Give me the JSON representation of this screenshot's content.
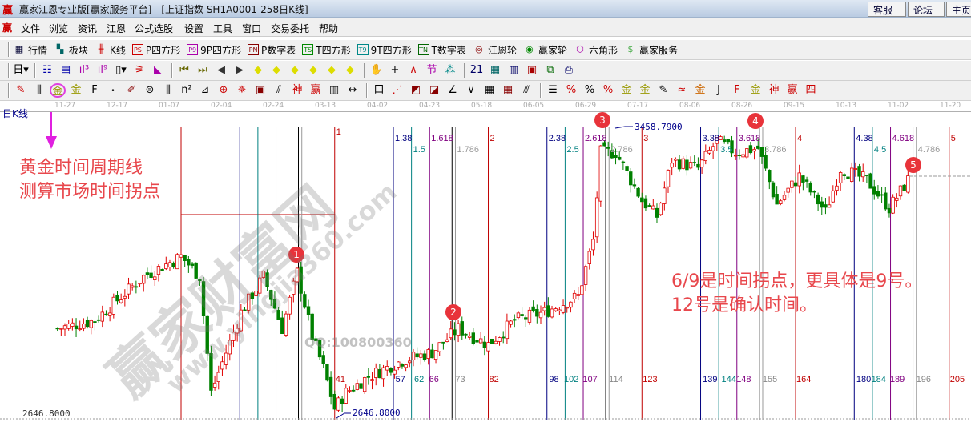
{
  "window": {
    "logo": "赢",
    "title": "赢家江恩专业版[赢家服务平台] - [上证指数  SH1A0001-258日K线]",
    "buttons": [
      "客服",
      "论坛",
      "主页"
    ]
  },
  "menu": {
    "logo": "赢",
    "items": [
      "文件",
      "浏览",
      "资讯",
      "江恩",
      "公式选股",
      "设置",
      "工具",
      "窗口",
      "交易委托",
      "帮助"
    ]
  },
  "toolbar1": [
    {
      "icon": "table-icon",
      "glyph": "▦",
      "label": "行情",
      "color": "#003"
    },
    {
      "icon": "sector-grid-icon",
      "glyph": "▚",
      "label": "板块",
      "color": "#066"
    },
    {
      "icon": "kline-icon",
      "glyph": "╫",
      "label": "K线",
      "color": "#c00"
    },
    {
      "icon": "ps-icon",
      "glyph": "PS",
      "label": "P四方形",
      "color": "#c00",
      "box": true
    },
    {
      "icon": "p9-icon",
      "glyph": "P9",
      "label": "9P四方形",
      "color": "#a0a",
      "box": true
    },
    {
      "icon": "pn-icon",
      "glyph": "PN",
      "label": "P数字表",
      "color": "#800",
      "box": true
    },
    {
      "icon": "ts-icon",
      "glyph": "TS",
      "label": "T四方形",
      "color": "#080",
      "box": true
    },
    {
      "icon": "t9-icon",
      "glyph": "T9",
      "label": "9T四方形",
      "color": "#088",
      "box": true
    },
    {
      "icon": "tn-icon",
      "glyph": "TN",
      "label": "T数字表",
      "color": "#060",
      "box": true
    },
    {
      "icon": "gann-wheel-icon",
      "glyph": "◎",
      "label": "江恩轮",
      "color": "#800"
    },
    {
      "icon": "winner-wheel-icon",
      "glyph": "◉",
      "label": "赢家轮",
      "color": "#080"
    },
    {
      "icon": "hexagon-icon",
      "glyph": "⬡",
      "label": "六角形",
      "color": "#a0a"
    },
    {
      "icon": "dollar-icon",
      "glyph": "$",
      "label": "赢家服务",
      "color": "#4a4"
    }
  ],
  "toolbar2": [
    {
      "icon": "day-period-dropdown-icon",
      "glyph": "日▾",
      "color": "#000"
    },
    {
      "icon": "overlay-icon",
      "glyph": "☷",
      "color": "#00a"
    },
    {
      "icon": "notes-icon",
      "glyph": "▤",
      "color": "#00a"
    },
    {
      "icon": "period3-icon",
      "glyph": "ıl³",
      "color": "#a0a"
    },
    {
      "icon": "period9-icon",
      "glyph": "ıl⁹",
      "color": "#a0a"
    },
    {
      "icon": "candle-type-icon",
      "glyph": "▯▾",
      "color": "#000"
    },
    {
      "icon": "gann-fan-icon",
      "glyph": "⚞",
      "color": "#c00"
    },
    {
      "icon": "flag-icon",
      "glyph": "◣",
      "color": "#a0a"
    },
    {
      "icon": "first-icon",
      "glyph": "⏮",
      "color": "#660"
    },
    {
      "icon": "last-icon",
      "glyph": "⏭",
      "color": "#660"
    },
    {
      "icon": "left-icon",
      "glyph": "◀",
      "color": "#333"
    },
    {
      "icon": "right-icon",
      "glyph": "▶",
      "color": "#333"
    },
    {
      "icon": "diamond-left-icon",
      "glyph": "◆",
      "color": "#dd0"
    },
    {
      "icon": "diamond-right-icon",
      "glyph": "◆",
      "color": "#dd0"
    },
    {
      "icon": "diamond-expand-icon",
      "glyph": "◆",
      "color": "#dd0"
    },
    {
      "icon": "diamond-shrink-icon",
      "glyph": "◆",
      "color": "#dd0"
    },
    {
      "icon": "diamond-zoom-icon",
      "glyph": "◆",
      "color": "#dd0"
    },
    {
      "icon": "diamond-vert-icon",
      "glyph": "◆",
      "color": "#dd0"
    },
    {
      "icon": "hand-icon",
      "glyph": "✋",
      "color": "#000"
    },
    {
      "icon": "crosshair-icon",
      "glyph": "+",
      "color": "#000"
    },
    {
      "icon": "zigzag-icon",
      "glyph": "∧",
      "color": "#c00"
    },
    {
      "icon": "node-icon",
      "glyph": "节",
      "color": "#a0a"
    },
    {
      "icon": "puzzle-icon",
      "glyph": "⁂",
      "color": "#088"
    },
    {
      "icon": "calendar-icon",
      "glyph": "21",
      "color": "#006"
    },
    {
      "icon": "calculator-icon",
      "glyph": "▦",
      "color": "#066"
    },
    {
      "icon": "document-icon",
      "glyph": "▥",
      "color": "#006"
    },
    {
      "icon": "save-icon",
      "glyph": "▣",
      "color": "#a00"
    },
    {
      "icon": "network-icon",
      "glyph": "⧉",
      "color": "#060"
    },
    {
      "icon": "printer-icon",
      "glyph": "⎙",
      "color": "#006"
    }
  ],
  "toolbar3": [
    {
      "icon": "pen-icon",
      "glyph": "✎",
      "color": "#c00"
    },
    {
      "icon": "vertical-lines-icon",
      "glyph": "⫼",
      "color": "#000"
    },
    {
      "icon": "golden-time-cycle-icon",
      "glyph": "金",
      "color": "#990",
      "highlighted": true
    },
    {
      "icon": "gold-lines-icon",
      "glyph": "金",
      "color": "#990"
    },
    {
      "icon": "fib-lines-icon",
      "glyph": "F",
      "color": "#000"
    },
    {
      "icon": "spiral-icon",
      "glyph": "᭼",
      "color": "#000"
    },
    {
      "icon": "brush-icon",
      "glyph": "✐",
      "color": "#800"
    },
    {
      "icon": "circle-ruler-icon",
      "glyph": "⊜",
      "color": "#000"
    },
    {
      "icon": "equal-lines-icon",
      "glyph": "⫼",
      "color": "#000"
    },
    {
      "icon": "n2-icon",
      "glyph": "n²",
      "color": "#000"
    },
    {
      "icon": "triangle-icon",
      "glyph": "⊿",
      "color": "#000"
    },
    {
      "icon": "target-icon",
      "glyph": "⊕",
      "color": "#c00"
    },
    {
      "icon": "star-icon",
      "glyph": "✵",
      "color": "#c00"
    },
    {
      "icon": "square-spiral-icon",
      "glyph": "▣",
      "color": "#800"
    },
    {
      "icon": "slant-lines-icon",
      "glyph": "⫽",
      "color": "#000"
    },
    {
      "icon": "shen-icon",
      "glyph": "神",
      "color": "#c00"
    },
    {
      "icon": "ying-icon",
      "glyph": "赢",
      "color": "#c00"
    },
    {
      "icon": "ruler-icon",
      "glyph": "▥",
      "color": "#000"
    },
    {
      "icon": "span-icon",
      "glyph": "↔",
      "color": "#000"
    },
    {
      "icon": "box-icon",
      "glyph": "口",
      "color": "#000"
    },
    {
      "icon": "fan-icon",
      "glyph": "⋰",
      "color": "#c00"
    },
    {
      "icon": "fan-box-icon",
      "glyph": "◩",
      "color": "#800"
    },
    {
      "icon": "fan-grid-icon",
      "glyph": "◪",
      "color": "#800"
    },
    {
      "icon": "angle-icon",
      "glyph": "∠",
      "color": "#000"
    },
    {
      "icon": "v-icon",
      "glyph": "∨",
      "color": "#000"
    },
    {
      "icon": "grid-icon",
      "glyph": "▦",
      "color": "#000"
    },
    {
      "icon": "grid2-icon",
      "glyph": "▦",
      "color": "#800"
    },
    {
      "icon": "parallel-icon",
      "glyph": "⫻",
      "color": "#000"
    },
    {
      "icon": "fib-levels-icon",
      "glyph": "☰",
      "color": "#000"
    },
    {
      "icon": "percent-fan-icon",
      "glyph": "%",
      "color": "#c00"
    },
    {
      "icon": "percent-icon",
      "glyph": "%",
      "color": "#000"
    },
    {
      "icon": "percent-lines-icon",
      "glyph": "%",
      "color": "#c00"
    },
    {
      "icon": "gold-circle-icon",
      "glyph": "金",
      "color": "#990"
    },
    {
      "icon": "gold-levels-icon",
      "glyph": "金",
      "color": "#990"
    },
    {
      "icon": "pencil-levels-icon",
      "glyph": "✎",
      "color": "#000"
    },
    {
      "icon": "wave-icon",
      "glyph": "≈",
      "color": "#c00"
    },
    {
      "icon": "gold-box-icon",
      "glyph": "金",
      "color": "#c60"
    },
    {
      "icon": "j-angle-icon",
      "glyph": "J",
      "color": "#000"
    },
    {
      "icon": "f-angle-icon",
      "glyph": "F",
      "color": "#c00"
    },
    {
      "icon": "gold-angle-icon",
      "glyph": "金",
      "color": "#990"
    },
    {
      "icon": "shen-angle-icon",
      "glyph": "神",
      "color": "#c00"
    },
    {
      "icon": "ying-angle-icon",
      "glyph": "赢",
      "color": "#c00"
    },
    {
      "icon": "four-angle-icon",
      "glyph": "四",
      "color": "#c00"
    }
  ],
  "date_axis": [
    "11-27",
    "12-17",
    "01-07",
    "02-04",
    "02-24",
    "03-13",
    "04-02",
    "04-23",
    "05-18",
    "06-05",
    "06-29",
    "07-17",
    "08-06",
    "08-26",
    "09-15",
    "10-13",
    "11-02",
    "11-20"
  ],
  "chart": {
    "period_label": "日K线",
    "low_price_axis_label": "2646.8000",
    "low_marker_label": "2646.8000",
    "high_marker_label": "3458.7900",
    "price_range": [
      2646.8,
      3458.79
    ],
    "colors": {
      "up": "#e00000",
      "down": "#008000",
      "cycle": "#c00000",
      "r0382": "#000080",
      "r05": "#008080",
      "r0618": "#800080",
      "r0764": "#000000",
      "r0786": "#999999"
    },
    "cycle_period_bars": 41,
    "ratios": [
      0.382,
      0.5,
      0.618,
      0.764,
      0.786
    ],
    "cycle_top_labels": [
      [
        "1"
      ],
      [
        "1.38",
        "1.5",
        "1.618",
        "1.786",
        "2"
      ],
      [
        "2.38",
        "2.5",
        "2.618",
        "2.786",
        "3"
      ],
      [
        "3.38",
        "3.5",
        "3.618",
        "3.786",
        "4"
      ],
      [
        "4.38",
        "4.5",
        "4.618",
        "4.786",
        "5"
      ]
    ],
    "cycle_bar_counts": [
      "41",
      "57",
      "62",
      "66",
      "73",
      "82",
      "98",
      "102",
      "107",
      "114",
      "123",
      "139",
      "144",
      "148",
      "155",
      "164",
      "180",
      "184",
      "189",
      "196",
      "205"
    ],
    "kline_anchors": [
      [
        -33,
        2898
      ],
      [
        -23,
        2922
      ],
      [
        -10,
        3051
      ],
      [
        0,
        3110
      ],
      [
        5,
        3051
      ],
      [
        8,
        2710
      ],
      [
        16,
        2946
      ],
      [
        22,
        3051
      ],
      [
        27,
        2898
      ],
      [
        31,
        3063
      ],
      [
        35,
        2875
      ],
      [
        38,
        2781
      ],
      [
        41,
        2663
      ],
      [
        44,
        2710
      ],
      [
        50,
        2757
      ],
      [
        59,
        2804
      ],
      [
        67,
        2828
      ],
      [
        74,
        2898
      ],
      [
        82,
        2851
      ],
      [
        89,
        2922
      ],
      [
        97,
        2946
      ],
      [
        106,
        2993
      ],
      [
        110,
        3157
      ],
      [
        112,
        3416
      ],
      [
        116,
        3416
      ],
      [
        123,
        3275
      ],
      [
        127,
        3228
      ],
      [
        131,
        3393
      ],
      [
        138,
        3369
      ],
      [
        143,
        3450
      ],
      [
        148,
        3416
      ],
      [
        154,
        3428
      ],
      [
        159,
        3263
      ],
      [
        165,
        3346
      ],
      [
        172,
        3240
      ],
      [
        176,
        3369
      ],
      [
        183,
        3334
      ],
      [
        189,
        3252
      ],
      [
        194,
        3334
      ]
    ],
    "markers": [
      "1",
      "2",
      "3",
      "4",
      "5"
    ]
  },
  "annotations": {
    "left": [
      "黄金时间周期线",
      "测算市场时间拐点"
    ],
    "right": [
      "6/9是时间拐点，更具体是9号。",
      "12号是确认时间。"
    ]
  },
  "watermark": {
    "logo_text": "赢家财富网",
    "site": "www.yingjia360.com",
    "qq": "QQ:100800360"
  }
}
